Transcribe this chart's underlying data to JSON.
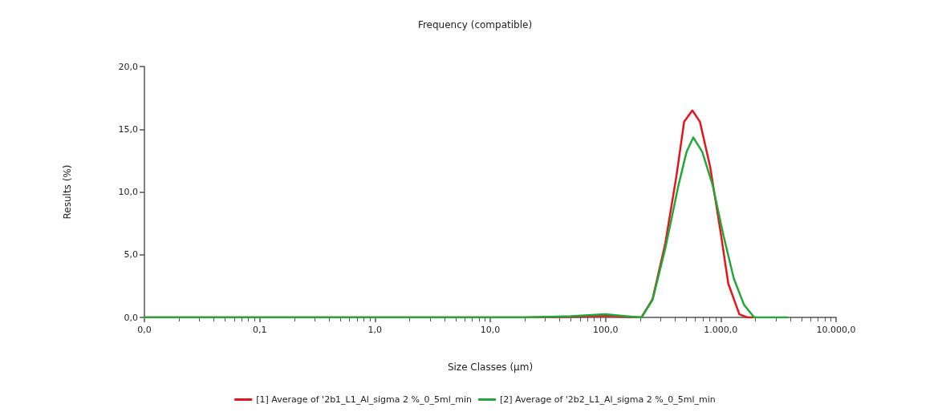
{
  "chart_data": {
    "type": "line",
    "title": "Frequency (compatible)",
    "xlabel": "Size Classes (µm)",
    "ylabel": "Results (%)",
    "log": "x",
    "grid": false,
    "legend": "bottom",
    "marker": "none",
    "line_style": "solid",
    "xlim": [
      0.01,
      10000
    ],
    "xticks": [
      {
        "value": 0.01,
        "label": "0,0"
      },
      {
        "value": 0.1,
        "label": "0,1"
      },
      {
        "value": 1,
        "label": "1,0"
      },
      {
        "value": 10,
        "label": "10,0"
      },
      {
        "value": 100,
        "label": "100,0"
      },
      {
        "value": 1000,
        "label": "1.000,0"
      },
      {
        "value": 10000,
        "label": "10.000,0"
      }
    ],
    "ylim": [
      0,
      20
    ],
    "yticks": [
      {
        "value": 0,
        "label": "0,0"
      },
      {
        "value": 5,
        "label": "5,0"
      },
      {
        "value": 10,
        "label": "10,0"
      },
      {
        "value": 15,
        "label": "15,0"
      },
      {
        "value": 20,
        "label": "20,0"
      }
    ],
    "series": [
      {
        "name": "[1] Average of '2b1_L1_Al_sigma 2 %_0_5ml_min",
        "color": "#e8141c",
        "x": [
          0.01,
          20,
          50,
          100,
          150,
          205,
          256,
          330,
          411,
          481,
          567,
          659,
          809,
          1000,
          1161,
          1449,
          1700,
          2000
        ],
        "values": [
          0,
          0,
          0.05,
          0.15,
          0.05,
          0,
          1.46,
          5.9,
          11.2,
          15.6,
          16.5,
          15.6,
          12.0,
          6.7,
          2.7,
          0.25,
          0,
          0
        ]
      },
      {
        "name": "[2] Average of '2b2_L1_Al_sigma 2 %_0_5ml_min",
        "color": "#22a83a",
        "x": [
          0.01,
          20,
          50,
          100,
          150,
          205,
          256,
          330,
          431,
          505,
          577,
          690,
          847,
          1057,
          1297,
          1592,
          1950,
          3785
        ],
        "values": [
          0,
          0,
          0.1,
          0.25,
          0.1,
          0,
          1.4,
          5.5,
          10.6,
          13.2,
          14.35,
          13.2,
          10.6,
          6.5,
          3.1,
          1.0,
          0,
          0
        ]
      }
    ]
  }
}
